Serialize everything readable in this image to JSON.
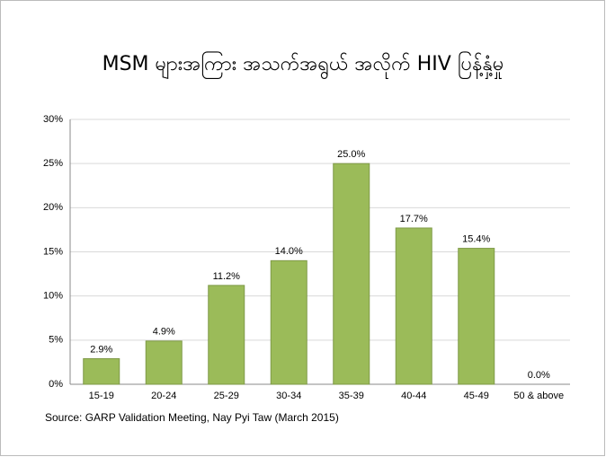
{
  "chart_data": {
    "type": "bar",
    "title": "MSM များအကြား အသက်အရွယ် အလိုက် HIV ပြန့်နှံ့မှု",
    "categories": [
      "15-19",
      "20-24",
      "25-29",
      "30-34",
      "35-39",
      "40-44",
      "45-49",
      "50 & above"
    ],
    "values": [
      2.9,
      4.9,
      11.2,
      14.0,
      25.0,
      17.7,
      15.4,
      0.0
    ],
    "value_labels": [
      "2.9%",
      "4.9%",
      "11.2%",
      "14.0%",
      "25.0%",
      "17.7%",
      "15.4%",
      "0.0%"
    ],
    "color": "#9bbb59",
    "ylim": [
      0,
      30
    ],
    "yticks": [
      {
        "value": 0,
        "label": "0%"
      },
      {
        "value": 5,
        "label": "5%"
      },
      {
        "value": 10,
        "label": "10%"
      },
      {
        "value": 15,
        "label": "15%"
      },
      {
        "value": 20,
        "label": "20%"
      },
      {
        "value": 25,
        "label": "25%"
      },
      {
        "value": 30,
        "label": "30%"
      }
    ],
    "grid": true,
    "source": "Source: GARP Validation Meeting, Nay Pyi Taw (March 2015)"
  }
}
